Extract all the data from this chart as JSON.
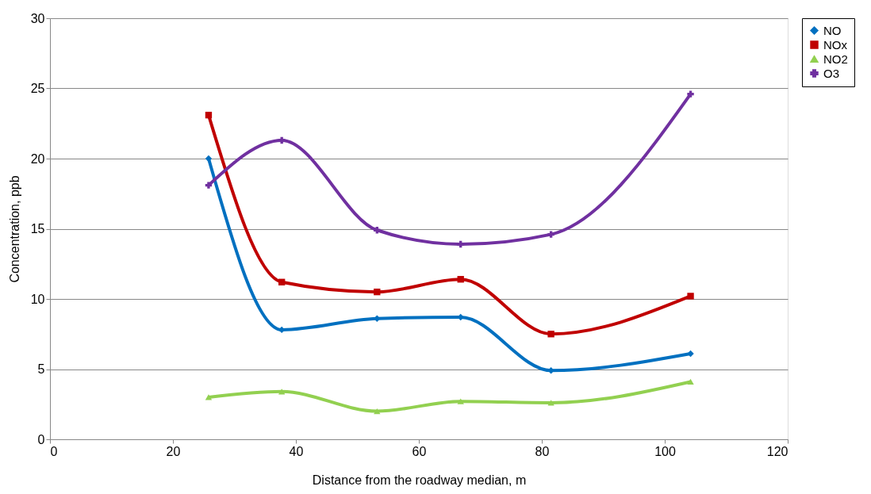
{
  "chart_data": {
    "type": "line",
    "xlabel": "Distance from the roadway median, m",
    "ylabel": "Concentration, ppb",
    "x": [
      25.8,
      37.7,
      53.2,
      66.8,
      81.5,
      104.2
    ],
    "series": [
      {
        "name": "NO",
        "color": "#0070c0",
        "marker": "diamond",
        "values": [
          20.0,
          7.8,
          8.6,
          8.7,
          4.9,
          6.1
        ]
      },
      {
        "name": "NOx",
        "color": "#c00000",
        "marker": "square",
        "values": [
          23.1,
          11.2,
          10.5,
          11.4,
          7.5,
          10.2
        ]
      },
      {
        "name": "NO2",
        "color": "#92d050",
        "marker": "triangle",
        "values": [
          3.0,
          3.4,
          2.0,
          2.7,
          2.6,
          4.1
        ]
      },
      {
        "name": "O3",
        "color": "#7030a0",
        "marker": "cross",
        "values": [
          18.1,
          21.3,
          14.9,
          13.9,
          14.6,
          24.6
        ]
      }
    ],
    "xlim": [
      0,
      120
    ],
    "xticks": [
      0,
      20,
      40,
      60,
      80,
      100,
      120
    ],
    "ylim": [
      0,
      30
    ],
    "yticks": [
      0,
      5,
      10,
      15,
      20,
      25,
      30
    ],
    "grid": "y",
    "legend": "right",
    "line_style": "solid"
  }
}
